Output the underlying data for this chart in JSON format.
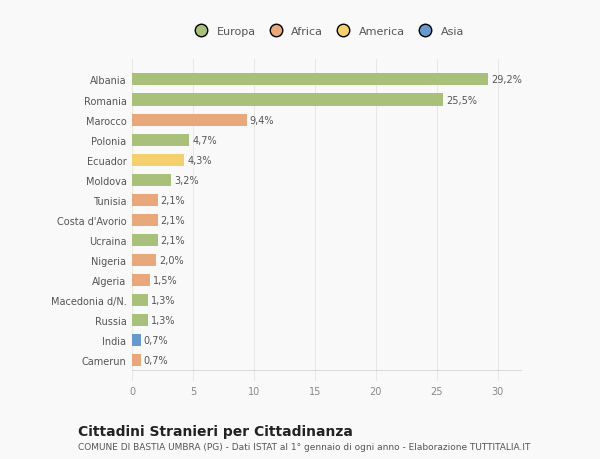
{
  "countries": [
    "Albania",
    "Romania",
    "Marocco",
    "Polonia",
    "Ecuador",
    "Moldova",
    "Tunisia",
    "Costa d'Avorio",
    "Ucraina",
    "Nigeria",
    "Algeria",
    "Macedonia d/N.",
    "Russia",
    "India",
    "Camerun"
  ],
  "values": [
    29.2,
    25.5,
    9.4,
    4.7,
    4.3,
    3.2,
    2.1,
    2.1,
    2.1,
    2.0,
    1.5,
    1.3,
    1.3,
    0.7,
    0.7
  ],
  "labels": [
    "29,2%",
    "25,5%",
    "9,4%",
    "4,7%",
    "4,3%",
    "3,2%",
    "2,1%",
    "2,1%",
    "2,1%",
    "2,0%",
    "1,5%",
    "1,3%",
    "1,3%",
    "0,7%",
    "0,7%"
  ],
  "continents": [
    "Europa",
    "Europa",
    "Africa",
    "Europa",
    "America",
    "Europa",
    "Africa",
    "Africa",
    "Europa",
    "Africa",
    "Africa",
    "Europa",
    "Europa",
    "Asia",
    "Africa"
  ],
  "colors": {
    "Europa": "#a8c07a",
    "Africa": "#e8a87c",
    "America": "#f5d06e",
    "Asia": "#6699cc"
  },
  "legend_order": [
    "Europa",
    "Africa",
    "America",
    "Asia"
  ],
  "xlim": [
    0,
    32
  ],
  "xticks": [
    0,
    5,
    10,
    15,
    20,
    25,
    30
  ],
  "title": "Cittadini Stranieri per Cittadinanza",
  "subtitle": "COMUNE DI BASTIA UMBRA (PG) - Dati ISTAT al 1° gennaio di ogni anno - Elaborazione TUTTITALIA.IT",
  "background_color": "#f9f9f9",
  "grid_color": "#e8e8e8",
  "bar_height": 0.6,
  "title_fontsize": 10,
  "subtitle_fontsize": 6.5,
  "label_fontsize": 7,
  "tick_fontsize": 7,
  "legend_fontsize": 8
}
